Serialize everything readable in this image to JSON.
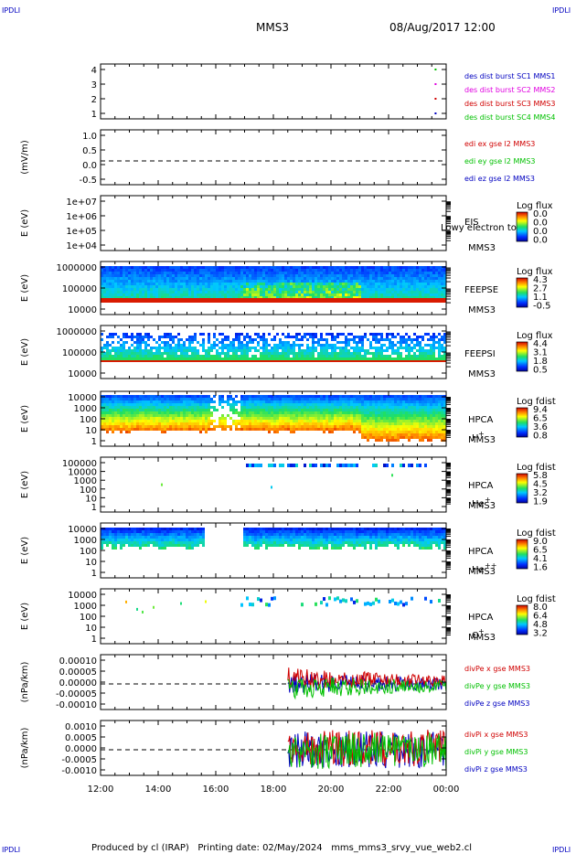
{
  "corners": {
    "tl": "IPDLI",
    "tr": "IPDLI",
    "bl": "IPDLI",
    "br": "IPDLI"
  },
  "header": {
    "spacecraft": "MMS3",
    "datetime": "08/Aug/2017 12:00"
  },
  "footer": "Produced by cl (IRAP)   Printing date: 02/May/2024   mms_mms3_srvy_vue_web2.cl",
  "colors": {
    "mms1": "#0000c0",
    "mms2": "#e000e0",
    "mms3": "#d00000",
    "mms4": "#00c000",
    "x": "#d00000",
    "y": "#00c000",
    "z": "#0000c0"
  },
  "chart_data": {
    "type": "heatmap",
    "x_axis": {
      "ticks": [
        "12:00",
        "14:00",
        "16:00",
        "18:00",
        "20:00",
        "22:00",
        "00:00"
      ],
      "range_hours": [
        12,
        24
      ]
    },
    "panels": [
      {
        "id": "dist",
        "type": "scatter",
        "ylabel": "",
        "yticks": [
          "4",
          "3",
          "2",
          "1"
        ],
        "legend": [
          "des dist burst SC1 MMS1",
          "des dist burst SC2 MMS2",
          "des dist burst SC3 MMS3",
          "des dist burst SC4 MMS4"
        ],
        "points": [
          {
            "x": 23.6,
            "y": 4,
            "series": "MMS4"
          },
          {
            "x": 23.6,
            "y": 3,
            "series": "MMS2"
          },
          {
            "x": 23.6,
            "y": 2,
            "series": "MMS3"
          },
          {
            "x": 23.6,
            "y": 1,
            "series": "MMS1"
          }
        ]
      },
      {
        "id": "edi",
        "type": "line",
        "ylabel": "(mV/m)",
        "yticks": [
          "1.0",
          "0.5",
          "0.0",
          "-0.5"
        ],
        "ylim": [
          -0.7,
          1.0
        ],
        "legend": [
          "edi ex gse l2 MMS3",
          "edi ey gse l2 MMS3",
          "edi ez gse l2 MMS3"
        ]
      },
      {
        "id": "eis",
        "type": "heatmap",
        "ylabel": "E (eV)",
        "yticks": [
          "1e+07",
          "1e+06",
          "1e+05",
          "1e+04"
        ],
        "label": "EIS",
        "label2": "MMS3",
        "overlay": "Lowy electron to",
        "cb_title": "Log flux",
        "cb_ticks": [
          "0.0",
          "0.0",
          "0.0",
          "0.0"
        ]
      },
      {
        "id": "feepse",
        "type": "heatmap",
        "ylabel": "E (eV)",
        "yticks": [
          "1000000",
          "100000",
          "10000"
        ],
        "label": "FEEPSE",
        "label2": "MMS3",
        "cb_title": "Log flux",
        "cb_ticks": [
          "4.3",
          "2.7",
          "1.1",
          "-0.5"
        ]
      },
      {
        "id": "feepsi",
        "type": "heatmap",
        "ylabel": "E (eV)",
        "yticks": [
          "1000000",
          "100000",
          "10000"
        ],
        "label": "FEEPSI",
        "label2": "MMS3",
        "cb_title": "Log flux",
        "cb_ticks": [
          "4.4",
          "3.1",
          "1.8",
          "0.5"
        ]
      },
      {
        "id": "hpca_h",
        "type": "heatmap",
        "ylabel": "E (eV)",
        "yticks": [
          "10000",
          "1000",
          "100",
          "10",
          "1"
        ],
        "label": "HPCA",
        "label2": "MMS3",
        "species": "H",
        "charge": "+",
        "cb_title": "Log fdist",
        "cb_ticks": [
          "9.4",
          "6.5",
          "3.6",
          "0.8"
        ]
      },
      {
        "id": "hpca_he",
        "type": "heatmap",
        "ylabel": "E (eV)",
        "yticks": [
          "100000",
          "10000",
          "1000",
          "100",
          "10",
          "1"
        ],
        "label": "HPCA",
        "label2": "MMS3",
        "species": "He",
        "charge": "+",
        "cb_title": "Log fdist",
        "cb_ticks": [
          "5.8",
          "4.5",
          "3.2",
          "1.9"
        ]
      },
      {
        "id": "hpca_he2",
        "type": "heatmap",
        "ylabel": "E (eV)",
        "yticks": [
          "10000",
          "1000",
          "100",
          "10",
          "1"
        ],
        "label": "HPCA",
        "label2": "MMS3",
        "species": "He",
        "charge": "++",
        "cb_title": "Log fdist",
        "cb_ticks": [
          "9.0",
          "6.5",
          "4.1",
          "1.6"
        ]
      },
      {
        "id": "hpca_o",
        "type": "heatmap",
        "ylabel": "E (eV)",
        "yticks": [
          "10000",
          "1000",
          "100",
          "10",
          "1"
        ],
        "label": "HPCA",
        "label2": "MMS3",
        "species": "O",
        "charge": "+",
        "cb_title": "Log fdist",
        "cb_ticks": [
          "8.0",
          "6.4",
          "4.8",
          "3.2"
        ]
      },
      {
        "id": "divpe",
        "type": "line",
        "ylabel": "(nPa/km)",
        "yticks": [
          "0.00010",
          "0.00005",
          "0.00000",
          "-0.00005",
          "-0.00010"
        ],
        "ylim": [
          -0.00012,
          0.00012
        ],
        "legend": [
          "divPe x gse MMS3",
          "divPe y gse MMS3",
          "divPe z gse MMS3"
        ],
        "data_start_hour": 18.5
      },
      {
        "id": "divpi",
        "type": "line",
        "ylabel": "(nPa/km)",
        "yticks": [
          "0.0010",
          "0.0005",
          "0.0000",
          "-0.0005",
          "-0.0010"
        ],
        "ylim": [
          -0.0012,
          0.0012
        ],
        "legend": [
          "divPi x gse MMS3",
          "divPi y gse MMS3",
          "divPi z gse MMS3"
        ],
        "data_start_hour": 18.5
      }
    ]
  }
}
